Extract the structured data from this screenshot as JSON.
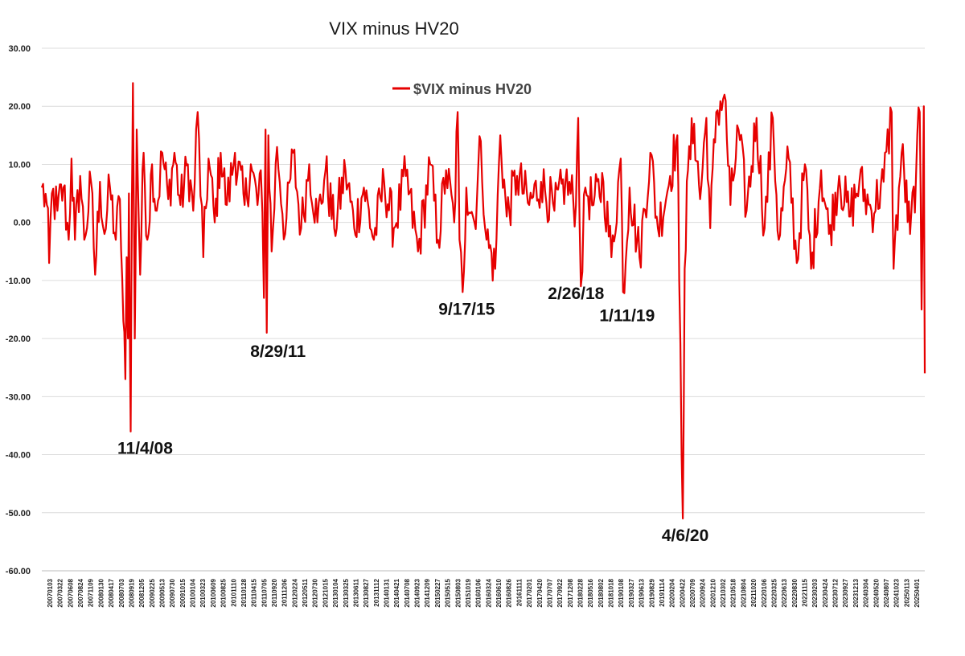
{
  "chart_data": {
    "type": "line",
    "title": "VIX minus HV20",
    "xlabel": "",
    "ylabel": "",
    "ylim": [
      -60,
      30
    ],
    "yticks": [
      "30.00",
      "20.00",
      "10.00",
      "0.00",
      "-10.00",
      "-20.00",
      "-30.00",
      "-40.00",
      "-50.00",
      "-60.00"
    ],
    "ytick_values": [
      30,
      20,
      10,
      0,
      -10,
      -20,
      -30,
      -40,
      -50,
      -60
    ],
    "grid": "horizontal",
    "legend_position": "top-center",
    "line_color": "#e60000",
    "x_tick_labels": [
      "20070103",
      "20070322",
      "20070608",
      "20070824",
      "20071109",
      "20080130",
      "20080417",
      "20080703",
      "20080919",
      "20081205",
      "20090225",
      "20090513",
      "20090730",
      "20091015",
      "20100104",
      "20100323",
      "20100609",
      "20100825",
      "20101110",
      "20110128",
      "20110415",
      "20110705",
      "20110920",
      "20111206",
      "20120224",
      "20120511",
      "20120730",
      "20121015",
      "20130104",
      "20130325",
      "20130611",
      "20130827",
      "20131112",
      "20140131",
      "20140421",
      "20140708",
      "20140923",
      "20141209",
      "20150227",
      "20150515",
      "20150803",
      "20151019",
      "20160106",
      "20160324",
      "20160610",
      "20160826",
      "20161111",
      "20170201",
      "20170420",
      "20170707",
      "20170922",
      "20171208",
      "20180228",
      "20180516",
      "20180802",
      "20181018",
      "20190108",
      "20190327",
      "20190613",
      "20190829",
      "20191114",
      "20200204",
      "20200422",
      "20200709",
      "20200924",
      "20201210",
      "20210302",
      "20210518",
      "20210804",
      "20211020",
      "20220106",
      "20220325",
      "20220613",
      "20220830",
      "20221115",
      "20230203",
      "20230424",
      "20230712",
      "20230927",
      "20231213",
      "20240304",
      "20240520",
      "20240807",
      "20241023",
      "20250113",
      "20250401"
    ],
    "series": [
      {
        "name": "$VIX minus HV20",
        "points": [
          {
            "x": "2007-01-03",
            "y": 6
          },
          {
            "x": "2007-02-10",
            "y": 3
          },
          {
            "x": "2007-02-27",
            "y": -7
          },
          {
            "x": "2007-03-20",
            "y": 5
          },
          {
            "x": "2007-05-01",
            "y": 2
          },
          {
            "x": "2007-06-15",
            "y": 6
          },
          {
            "x": "2007-07-25",
            "y": -3
          },
          {
            "x": "2007-08-15",
            "y": 11
          },
          {
            "x": "2007-09-10",
            "y": -3
          },
          {
            "x": "2007-10-20",
            "y": 8
          },
          {
            "x": "2007-11-20",
            "y": -3
          },
          {
            "x": "2008-01-10",
            "y": 7
          },
          {
            "x": "2008-02-10",
            "y": -9
          },
          {
            "x": "2008-03-17",
            "y": 7
          },
          {
            "x": "2008-04-20",
            "y": -2
          },
          {
            "x": "2008-06-01",
            "y": 6
          },
          {
            "x": "2008-07-15",
            "y": -3
          },
          {
            "x": "2008-08-15",
            "y": 4
          },
          {
            "x": "2008-09-10",
            "y": -17
          },
          {
            "x": "2008-09-25",
            "y": -27
          },
          {
            "x": "2008-10-05",
            "y": -6
          },
          {
            "x": "2008-10-15",
            "y": -20
          },
          {
            "x": "2008-10-22",
            "y": 5
          },
          {
            "x": "2008-11-04",
            "y": -36
          },
          {
            "x": "2008-11-14",
            "y": 5
          },
          {
            "x": "2008-11-21",
            "y": 24
          },
          {
            "x": "2008-12-05",
            "y": -20
          },
          {
            "x": "2008-12-20",
            "y": 16
          },
          {
            "x": "2009-01-15",
            "y": -9
          },
          {
            "x": "2009-02-10",
            "y": 12
          },
          {
            "x": "2009-03-10",
            "y": -3
          },
          {
            "x": "2009-04-15",
            "y": 10
          },
          {
            "x": "2009-05-20",
            "y": 2
          },
          {
            "x": "2009-07-01",
            "y": 12
          },
          {
            "x": "2009-08-15",
            "y": 4
          },
          {
            "x": "2009-10-01",
            "y": 12
          },
          {
            "x": "2009-11-15",
            "y": 3
          },
          {
            "x": "2010-01-10",
            "y": 10
          },
          {
            "x": "2010-02-20",
            "y": 2
          },
          {
            "x": "2010-03-25",
            "y": 19
          },
          {
            "x": "2010-05-07",
            "y": -6
          },
          {
            "x": "2010-06-15",
            "y": 11
          },
          {
            "x": "2010-08-01",
            "y": 0
          },
          {
            "x": "2010-09-15",
            "y": 12
          },
          {
            "x": "2010-11-01",
            "y": 3
          },
          {
            "x": "2011-01-01",
            "y": 12
          },
          {
            "x": "2011-03-15",
            "y": 3
          },
          {
            "x": "2011-05-01",
            "y": 10
          },
          {
            "x": "2011-06-20",
            "y": 3
          },
          {
            "x": "2011-07-15",
            "y": 9
          },
          {
            "x": "2011-08-08",
            "y": -13
          },
          {
            "x": "2011-08-20",
            "y": 16
          },
          {
            "x": "2011-08-29",
            "y": -19
          },
          {
            "x": "2011-09-10",
            "y": 15
          },
          {
            "x": "2011-10-05",
            "y": -5
          },
          {
            "x": "2011-11-15",
            "y": 13
          },
          {
            "x": "2012-01-15",
            "y": -2
          },
          {
            "x": "2012-03-15",
            "y": 12
          },
          {
            "x": "2012-05-15",
            "y": -1
          },
          {
            "x": "2012-07-15",
            "y": 10
          },
          {
            "x": "2012-09-15",
            "y": 0
          },
          {
            "x": "2012-11-15",
            "y": 9
          },
          {
            "x": "2013-01-20",
            "y": -1
          },
          {
            "x": "2013-04-15",
            "y": 9
          },
          {
            "x": "2013-06-20",
            "y": -1
          },
          {
            "x": "2013-09-01",
            "y": 6
          },
          {
            "x": "2013-11-15",
            "y": -3
          },
          {
            "x": "2014-02-01",
            "y": 7
          },
          {
            "x": "2014-04-15",
            "y": -1
          },
          {
            "x": "2014-07-15",
            "y": 8
          },
          {
            "x": "2014-10-15",
            "y": -5
          },
          {
            "x": "2015-01-15",
            "y": 10
          },
          {
            "x": "2015-03-15",
            "y": -3
          },
          {
            "x": "2015-05-15",
            "y": 9
          },
          {
            "x": "2015-07-15",
            "y": 0
          },
          {
            "x": "2015-08-10",
            "y": 19
          },
          {
            "x": "2015-08-24",
            "y": -3
          },
          {
            "x": "2015-09-17",
            "y": -12
          },
          {
            "x": "2015-10-15",
            "y": 6
          },
          {
            "x": "2015-12-15",
            "y": 0
          },
          {
            "x": "2016-02-01",
            "y": 14
          },
          {
            "x": "2016-03-15",
            "y": -3
          },
          {
            "x": "2016-05-20",
            "y": -8
          },
          {
            "x": "2016-06-27",
            "y": 15
          },
          {
            "x": "2016-08-15",
            "y": 1
          },
          {
            "x": "2016-11-01",
            "y": 8
          },
          {
            "x": "2017-02-01",
            "y": 3
          },
          {
            "x": "2017-05-01",
            "y": 7
          },
          {
            "x": "2017-08-10",
            "y": 2
          },
          {
            "x": "2017-11-01",
            "y": 7
          },
          {
            "x": "2018-01-20",
            "y": 3
          },
          {
            "x": "2018-02-06",
            "y": 18
          },
          {
            "x": "2018-02-26",
            "y": -11
          },
          {
            "x": "2018-04-01",
            "y": 6
          },
          {
            "x": "2018-06-01",
            "y": 3
          },
          {
            "x": "2018-08-15",
            "y": 7
          },
          {
            "x": "2018-10-15",
            "y": -6
          },
          {
            "x": "2018-12-24",
            "y": 11
          },
          {
            "x": "2019-01-11",
            "y": -12
          },
          {
            "x": "2019-03-01",
            "y": 6
          },
          {
            "x": "2019-05-15",
            "y": -6
          },
          {
            "x": "2019-08-05",
            "y": 12
          },
          {
            "x": "2019-10-01",
            "y": -1
          },
          {
            "x": "2020-01-01",
            "y": 8
          },
          {
            "x": "2020-02-25",
            "y": 15
          },
          {
            "x": "2020-03-10",
            "y": -10
          },
          {
            "x": "2020-04-06",
            "y": -51
          },
          {
            "x": "2020-04-20",
            "y": -8
          },
          {
            "x": "2020-05-15",
            "y": 9
          },
          {
            "x": "2020-07-01",
            "y": 17
          },
          {
            "x": "2020-08-15",
            "y": 4
          },
          {
            "x": "2020-10-01",
            "y": 18
          },
          {
            "x": "2020-10-30",
            "y": -1
          },
          {
            "x": "2020-12-15",
            "y": 19
          },
          {
            "x": "2021-02-15",
            "y": 22
          },
          {
            "x": "2021-04-01",
            "y": 3
          },
          {
            "x": "2021-06-01",
            "y": 16
          },
          {
            "x": "2021-08-01",
            "y": 2
          },
          {
            "x": "2021-10-15",
            "y": 18
          },
          {
            "x": "2021-12-15",
            "y": -1
          },
          {
            "x": "2022-02-15",
            "y": 18
          },
          {
            "x": "2022-04-01",
            "y": -3
          },
          {
            "x": "2022-06-15",
            "y": 11
          },
          {
            "x": "2022-08-15",
            "y": -7
          },
          {
            "x": "2022-10-15",
            "y": 10
          },
          {
            "x": "2022-12-01",
            "y": -8
          },
          {
            "x": "2023-02-15",
            "y": 9
          },
          {
            "x": "2023-04-15",
            "y": -2
          },
          {
            "x": "2023-07-01",
            "y": 8
          },
          {
            "x": "2023-09-15",
            "y": 1
          },
          {
            "x": "2023-12-01",
            "y": 7
          },
          {
            "x": "2024-03-01",
            "y": 2
          },
          {
            "x": "2024-06-01",
            "y": 7
          },
          {
            "x": "2024-08-01",
            "y": 19
          },
          {
            "x": "2024-08-15",
            "y": -8
          },
          {
            "x": "2024-10-15",
            "y": 12
          },
          {
            "x": "2024-12-18",
            "y": -2
          },
          {
            "x": "2025-02-01",
            "y": 8
          },
          {
            "x": "2025-03-01",
            "y": 19
          },
          {
            "x": "2025-03-15",
            "y": -15
          },
          {
            "x": "2025-04-01",
            "y": 20
          },
          {
            "x": "2025-04-08",
            "y": -26
          }
        ]
      }
    ],
    "annotations": [
      {
        "text": "11/4/08",
        "x": "2008-11-04",
        "y": -36
      },
      {
        "text": "8/29/11",
        "x": "2011-08-29",
        "y": -19
      },
      {
        "text": "9/17/15",
        "x": "2015-09-17",
        "y": -12
      },
      {
        "text": "2/26/18",
        "x": "2018-02-26",
        "y": -11
      },
      {
        "text": "1/11/19",
        "x": "2019-01-11",
        "y": -12
      },
      {
        "text": "4/6/20",
        "x": "2020-04-06",
        "y": -51
      }
    ]
  }
}
